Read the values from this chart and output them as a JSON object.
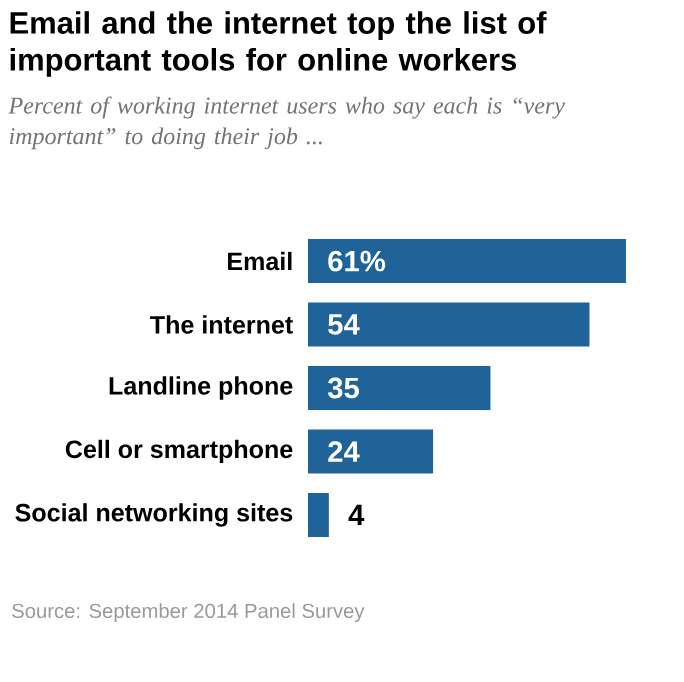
{
  "chart_data": {
    "type": "bar",
    "orientation": "horizontal",
    "title": "Email and the internet top the list of important tools for online workers",
    "subtitle": "Percent of working internet users who say each is “very important” to doing their job ...",
    "categories": [
      "Email",
      "The internet",
      "Landline phone",
      "Cell or smartphone",
      "Social networking sites"
    ],
    "values": [
      61,
      54,
      35,
      24,
      4
    ],
    "value_labels": [
      "61%",
      "54",
      "35",
      "24",
      "4"
    ],
    "color": "#1f6398",
    "annotations": [
      "Source: September 2014 Panel Survey"
    ]
  }
}
